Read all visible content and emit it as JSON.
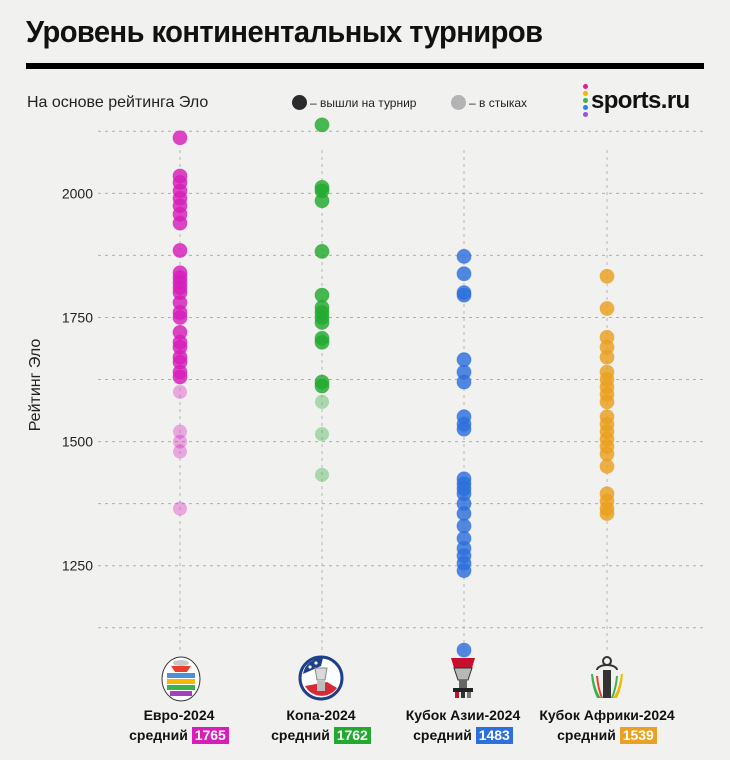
{
  "title": "Уровень континентальных турниров",
  "subtitle": "На основе рейтинга Эло",
  "legend": {
    "qualified": {
      "label": "– вышли на турнир",
      "color": "#2b2b2b"
    },
    "playoff": {
      "label": "– в стыках",
      "color": "#b3b3b3"
    }
  },
  "brand": {
    "name": "sports.ru",
    "dot_colors": [
      "#e91e8c",
      "#f5b800",
      "#39b54a",
      "#2f80ed",
      "#9b51e0"
    ]
  },
  "chart_data": {
    "type": "scatter",
    "ylabel": "Рейтинг Эло",
    "yticks": [
      1250,
      1500,
      1750,
      2000
    ],
    "ylim": [
      1050,
      2180
    ],
    "grid": true,
    "categories": [
      "Евро-2024",
      "Копа-2024",
      "Кубок Азии-2024",
      "Кубок Африки-2024"
    ],
    "series": [
      {
        "name": "Евро-2024",
        "color": "#d61fb9",
        "avg_label": "средний",
        "avg": "1765",
        "qualified": [
          2112,
          2035,
          2022,
          2005,
          1990,
          1975,
          1958,
          1940,
          1885,
          1840,
          1830,
          1820,
          1810,
          1800,
          1780,
          1760,
          1750,
          1720,
          1700,
          1690,
          1670,
          1660,
          1640,
          1630
        ],
        "playoff": [
          1600,
          1520,
          1500,
          1480,
          1365
        ]
      },
      {
        "name": "Копа-2024",
        "color": "#22aa2e",
        "avg_label": "средний",
        "avg": "1762",
        "qualified": [
          2138,
          2012,
          2005,
          1985,
          1883,
          1795,
          1770,
          1760,
          1750,
          1740,
          1708,
          1700,
          1620,
          1612
        ],
        "playoff": [
          1580,
          1515,
          1433
        ]
      },
      {
        "name": "Кубок Азии-2024",
        "color": "#2d6fdc",
        "avg_label": "средний",
        "avg": "1483",
        "qualified": [
          1873,
          1838,
          1800,
          1795,
          1665,
          1640,
          1620,
          1550,
          1535,
          1525,
          1425,
          1415,
          1405,
          1395,
          1375,
          1355,
          1330,
          1305,
          1285,
          1270,
          1255,
          1240,
          1080
        ],
        "playoff": []
      },
      {
        "name": "Кубок Африки-2024",
        "color": "#eaa020",
        "avg_label": "средний",
        "avg": "1539",
        "qualified": [
          1833,
          1768,
          1710,
          1690,
          1670,
          1640,
          1625,
          1610,
          1595,
          1580,
          1550,
          1535,
          1520,
          1505,
          1490,
          1475,
          1450,
          1395,
          1380,
          1365,
          1355
        ],
        "playoff": []
      }
    ]
  }
}
